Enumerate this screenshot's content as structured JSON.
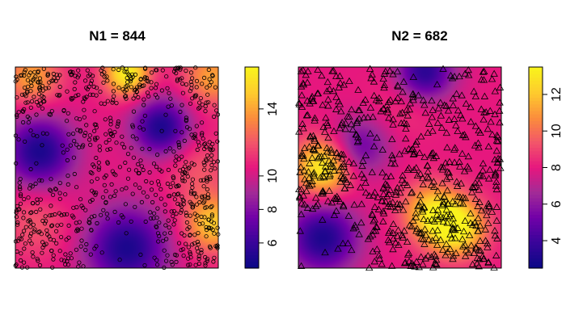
{
  "chart_data": [
    {
      "type": "heatmap",
      "title": "N1 = 844",
      "point_count": 844,
      "marker": "circle",
      "x_range": [
        0,
        1
      ],
      "y_range": [
        0,
        1
      ],
      "color_range": [
        4.5,
        16.5
      ],
      "colorbar_ticks": [
        {
          "value": 6,
          "label": "6"
        },
        {
          "value": 8,
          "label": "8"
        },
        {
          "value": 10,
          "label": "10"
        },
        {
          "value": 14,
          "label": "14"
        }
      ],
      "colormap": [
        "#0d0887",
        "#3a049a",
        "#7201a8",
        "#a22b97",
        "#e6177e",
        "#f2546b",
        "#fb8c3c",
        "#fec92e",
        "#f9f21d"
      ],
      "density_peaks": [
        {
          "x": 0.55,
          "y": 0.97,
          "value": 16.5,
          "spread": 0.08
        },
        {
          "x": 0.08,
          "y": 0.95,
          "value": 14,
          "spread": 0.1
        },
        {
          "x": 0.97,
          "y": 0.95,
          "value": 14,
          "spread": 0.1
        },
        {
          "x": 0.97,
          "y": 0.22,
          "value": 15,
          "spread": 0.1
        },
        {
          "x": 0.1,
          "y": 0.22,
          "value": 12,
          "spread": 0.12
        },
        {
          "x": 0.9,
          "y": 0.5,
          "value": 12,
          "spread": 0.12
        }
      ],
      "density_valleys": [
        {
          "x": 0.12,
          "y": 0.58,
          "value": 5,
          "spread": 0.12
        },
        {
          "x": 0.72,
          "y": 0.7,
          "value": 5,
          "spread": 0.1
        },
        {
          "x": 0.55,
          "y": 0.1,
          "value": 5,
          "spread": 0.14
        }
      ]
    },
    {
      "type": "heatmap",
      "title": "N2 = 682",
      "point_count": 682,
      "marker": "triangle",
      "x_range": [
        0,
        1
      ],
      "y_range": [
        0,
        1
      ],
      "color_range": [
        2.5,
        13.5
      ],
      "colorbar_ticks": [
        {
          "value": 4,
          "label": "4"
        },
        {
          "value": 6,
          "label": "6"
        },
        {
          "value": 8,
          "label": "8"
        },
        {
          "value": 10,
          "label": "10"
        },
        {
          "value": 12,
          "label": "12"
        }
      ],
      "colormap": [
        "#0d0887",
        "#3a049a",
        "#7201a8",
        "#a22b97",
        "#e6177e",
        "#f2546b",
        "#fb8c3c",
        "#fec92e",
        "#f9f21d"
      ],
      "density_peaks": [
        {
          "x": 0.12,
          "y": 0.5,
          "value": 13.5,
          "spread": 0.1
        },
        {
          "x": 0.78,
          "y": 0.2,
          "value": 13.5,
          "spread": 0.1
        },
        {
          "x": 0.65,
          "y": 0.28,
          "value": 12,
          "spread": 0.1
        },
        {
          "x": 0.55,
          "y": 0.85,
          "value": 9,
          "spread": 0.12
        }
      ],
      "density_valleys": [
        {
          "x": 0.62,
          "y": 0.97,
          "value": 3,
          "spread": 0.1
        },
        {
          "x": 0.12,
          "y": 0.15,
          "value": 3,
          "spread": 0.12
        },
        {
          "x": 0.3,
          "y": 0.6,
          "value": 5,
          "spread": 0.1
        }
      ]
    }
  ]
}
